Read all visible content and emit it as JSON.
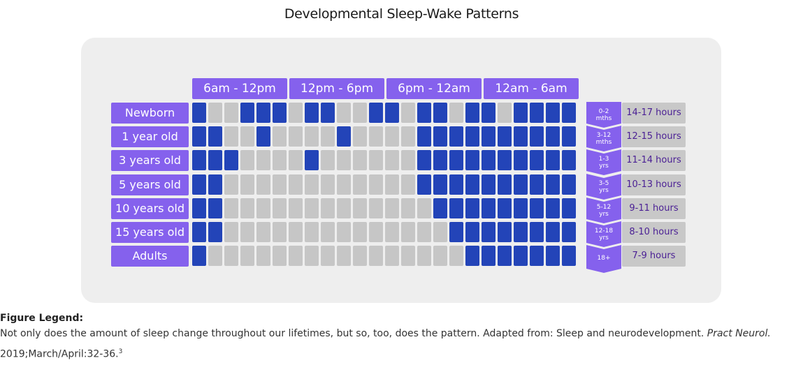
{
  "title": "Developmental Sleep-Wake Patterns",
  "headers": [
    "6am - 12pm",
    "12pm - 6pm",
    "6pm - 12am",
    "12am - 6am"
  ],
  "colors": {
    "asleep": "#2344b8",
    "awake": "#c6c6c6",
    "accent": "#8561ed",
    "hours_text": "#4a1f94"
  },
  "rows": [
    {
      "label": "Newborn",
      "age": [
        "0-2",
        "mths"
      ],
      "hours": "14-17 hours",
      "cells": [
        1,
        0,
        0,
        1,
        1,
        1,
        0,
        1,
        1,
        0,
        0,
        1,
        1,
        0,
        1,
        1,
        0,
        1,
        1,
        0,
        1,
        1,
        1,
        1
      ]
    },
    {
      "label": "1 year old",
      "age": [
        "3-12",
        "mths"
      ],
      "hours": "12-15 hours",
      "cells": [
        1,
        1,
        0,
        0,
        1,
        0,
        0,
        0,
        0,
        1,
        0,
        0,
        0,
        0,
        1,
        1,
        1,
        1,
        1,
        1,
        1,
        1,
        1,
        1
      ]
    },
    {
      "label": "3 years old",
      "age": [
        "1-3",
        "yrs"
      ],
      "hours": "11-14 hours",
      "cells": [
        1,
        1,
        1,
        0,
        0,
        0,
        0,
        1,
        0,
        0,
        0,
        0,
        0,
        0,
        1,
        1,
        1,
        1,
        1,
        1,
        1,
        1,
        1,
        1
      ]
    },
    {
      "label": "5 years old",
      "age": [
        "3-5",
        "yrs"
      ],
      "hours": "10-13 hours",
      "cells": [
        1,
        1,
        0,
        0,
        0,
        0,
        0,
        0,
        0,
        0,
        0,
        0,
        0,
        0,
        1,
        1,
        1,
        1,
        1,
        1,
        1,
        1,
        1,
        1
      ]
    },
    {
      "label": "10 years old",
      "age": [
        "5-12",
        "yrs"
      ],
      "hours": "9-11 hours",
      "cells": [
        1,
        1,
        0,
        0,
        0,
        0,
        0,
        0,
        0,
        0,
        0,
        0,
        0,
        0,
        0,
        1,
        1,
        1,
        1,
        1,
        1,
        1,
        1,
        1
      ]
    },
    {
      "label": "15 years old",
      "age": [
        "12-18",
        "yrs"
      ],
      "hours": "8-10 hours",
      "cells": [
        1,
        1,
        0,
        0,
        0,
        0,
        0,
        0,
        0,
        0,
        0,
        0,
        0,
        0,
        0,
        0,
        1,
        1,
        1,
        1,
        1,
        1,
        1,
        1
      ]
    },
    {
      "label": "Adults",
      "age": [
        "18+",
        ""
      ],
      "hours": "7-9 hours",
      "cells": [
        1,
        0,
        0,
        0,
        0,
        0,
        0,
        0,
        0,
        0,
        0,
        0,
        0,
        0,
        0,
        0,
        0,
        1,
        1,
        1,
        1,
        1,
        1,
        1
      ]
    }
  ],
  "legend": {
    "heading": "Figure Legend:",
    "text": "Not only does the amount of sleep change throughout our lifetimes, but so, too, does the pattern. Adapted from: Sleep and neurodevelopment.",
    "journal": "Pract Neurol.",
    "citation": "2019;March/April:32-36.",
    "superscript": "3"
  }
}
